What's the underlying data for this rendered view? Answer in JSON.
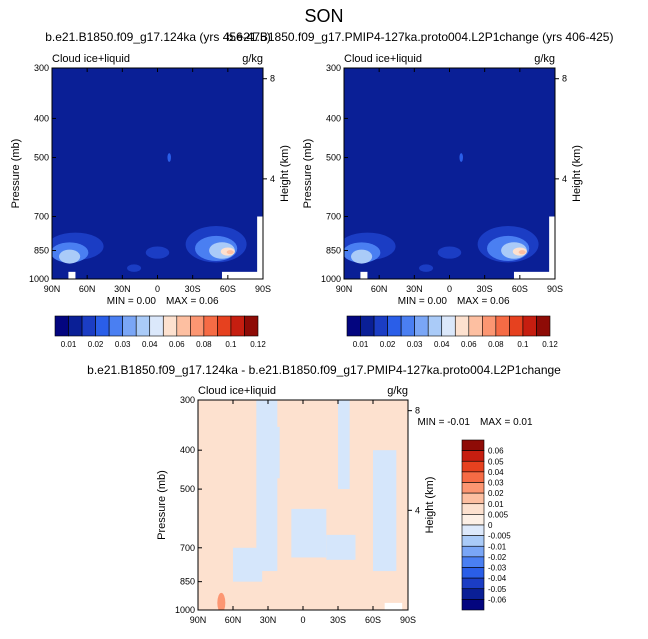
{
  "page_title": "SON",
  "colors": {
    "ctrl_panel_fill": "#0a1f96",
    "diff_panel_fill": "#fde1cf",
    "warm_patch": "#ffc8b0",
    "cool_patch": "#d5e6fb",
    "missing_data": "#ffffff"
  },
  "chart_data": [
    {
      "type": "heatmap",
      "title": "b.e21.B1850.f09_g17.124ka (yrs 456-475)",
      "left_label": "Cloud ice+liquid",
      "right_label": "g/kg",
      "ylabel": "Pressure (mb)",
      "ylabel_right": "Height (km)",
      "x_ticks": [
        "90N",
        "60N",
        "30N",
        "0",
        "30S",
        "60S",
        "90S"
      ],
      "y_ticks": [
        "300",
        "400",
        "500",
        "700",
        "850",
        "1000"
      ],
      "y_values": [
        300,
        400,
        500,
        700,
        850,
        1000
      ],
      "y_right_ticks": [
        "8",
        "4"
      ],
      "y_right_values": [
        8,
        4
      ],
      "x_range": [
        90,
        -90
      ],
      "y_range": [
        300,
        1000
      ],
      "y_scale": "log",
      "stats": {
        "min_label": "MIN =",
        "min": "0.00",
        "max_label": "MAX =",
        "max": "0.06"
      }
    },
    {
      "type": "heatmap",
      "title": "b.e21.B1850.f09_g17.PMIP4-127ka.proto004.L2P1change (yrs 406-425)",
      "left_label": "Cloud ice+liquid",
      "right_label": "g/kg",
      "ylabel": "Pressure (mb)",
      "ylabel_right": "Height (km)",
      "x_ticks": [
        "90N",
        "60N",
        "30N",
        "0",
        "30S",
        "60S",
        "90S"
      ],
      "y_ticks": [
        "300",
        "400",
        "500",
        "700",
        "850",
        "1000"
      ],
      "y_values": [
        300,
        400,
        500,
        700,
        850,
        1000
      ],
      "y_right_ticks": [
        "8",
        "4"
      ],
      "y_right_values": [
        8,
        4
      ],
      "x_range": [
        90,
        -90
      ],
      "y_range": [
        300,
        1000
      ],
      "y_scale": "log",
      "stats": {
        "min_label": "MIN =",
        "min": "0.00",
        "max_label": "MAX =",
        "max": "0.06"
      }
    },
    {
      "type": "heatmap",
      "title": "b.e21.B1850.f09_g17.124ka - b.e21.B1850.f09_g17.PMIP4-127ka.proto004.L2P1change",
      "left_label": "Cloud ice+liquid",
      "right_label": "g/kg",
      "ylabel": "Pressure (mb)",
      "ylabel_right": "Height (km)",
      "x_ticks": [
        "90N",
        "60N",
        "30N",
        "0",
        "30S",
        "60S",
        "90S"
      ],
      "y_ticks": [
        "300",
        "400",
        "500",
        "700",
        "850",
        "1000"
      ],
      "y_values": [
        300,
        400,
        500,
        700,
        850,
        1000
      ],
      "y_right_ticks": [
        "8",
        "4"
      ],
      "y_right_values": [
        8,
        4
      ],
      "x_range": [
        90,
        -90
      ],
      "y_range": [
        300,
        1000
      ],
      "y_scale": "log",
      "stats": {
        "min_label": "MIN =",
        "min": "-0.01",
        "max_label": "MAX =",
        "max": "0.01"
      }
    }
  ],
  "colorbar_top": {
    "labels": [
      "0.01",
      "0.02",
      "0.03",
      "0.04",
      "0.06",
      "0.08",
      "0.1",
      "0.12"
    ],
    "colors": [
      "#03057f",
      "#0a1f96",
      "#1b3dc4",
      "#2a5ee8",
      "#4a7ff2",
      "#7aa6f6",
      "#aacbf8",
      "#dbe8fb",
      "#fde1cf",
      "#fdbfa1",
      "#fc9672",
      "#f66b45",
      "#e6411f",
      "#c61e10",
      "#8e0b06"
    ]
  },
  "colorbar_diff": {
    "labels": [
      "0.06",
      "0.05",
      "0.04",
      "0.03",
      "0.02",
      "0.01",
      "0.005",
      "0",
      "-0.005",
      "-0.01",
      "-0.02",
      "-0.03",
      "-0.04",
      "-0.05",
      "-0.06"
    ],
    "colors": [
      "#8e0b06",
      "#c61e10",
      "#e6411f",
      "#f66b45",
      "#fc9672",
      "#fdbfa1",
      "#fde1cf",
      "#fdf0e6",
      "#dde9fb",
      "#aacbf8",
      "#7aa6f6",
      "#4a7ff2",
      "#2a5ee8",
      "#1b3dc4",
      "#0a1f96",
      "#03057f"
    ]
  }
}
